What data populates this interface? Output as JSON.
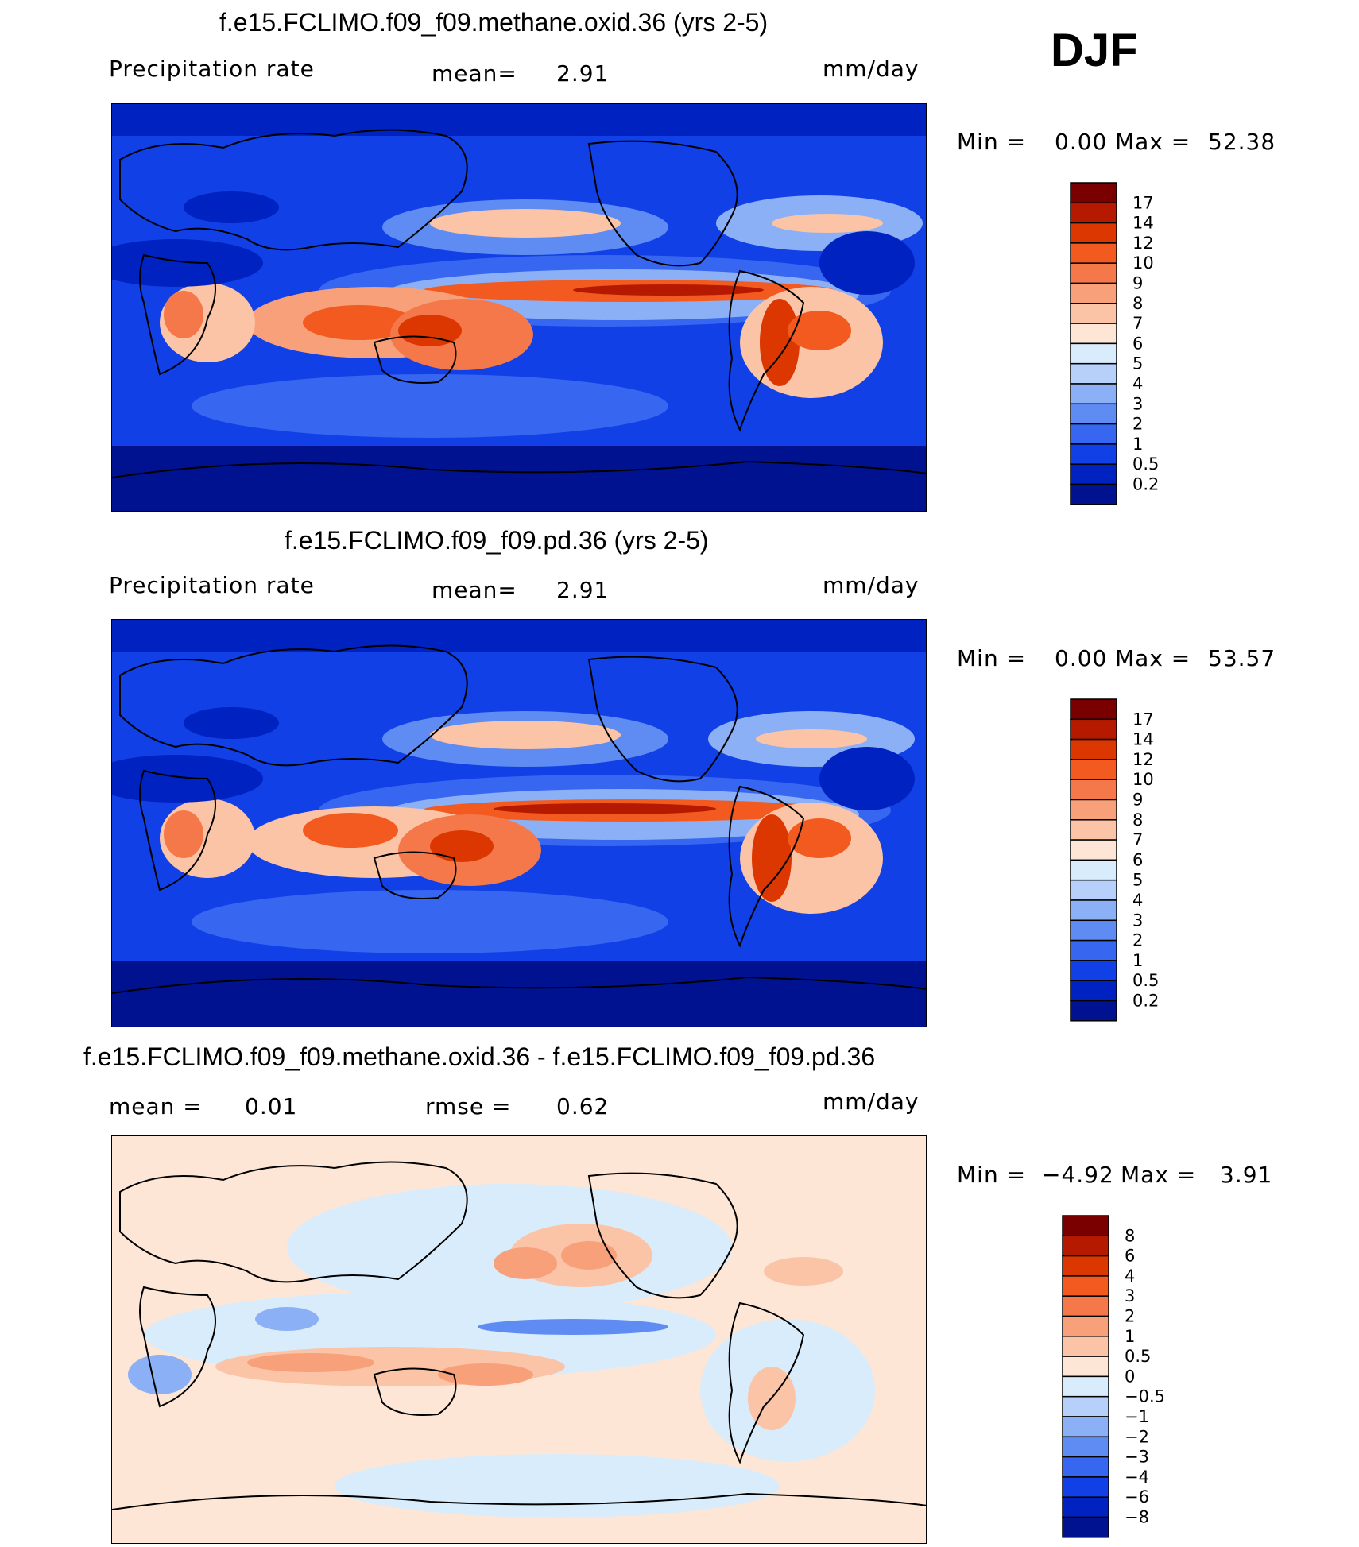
{
  "season": "DJF",
  "panels": [
    {
      "id": "methane",
      "title": "f.e15.FCLIMO.f09_f09.methane.oxid.36 (yrs 2-5)",
      "left_label": "Precipitation  rate",
      "center_label": "mean=",
      "center_value": "2.91",
      "right_label": "mm/day",
      "min_label": "Min  =",
      "min_value": "0.00",
      "max_label": "Max  =",
      "max_value": "52.38",
      "colorbar": {
        "labels": [
          "17",
          "14",
          "12",
          "10",
          "9",
          "8",
          "7",
          "6",
          "5",
          "4",
          "3",
          "2",
          "1",
          "0.5",
          "0.2"
        ],
        "colors": [
          "#7a0000",
          "#b51a00",
          "#dc3700",
          "#f25a20",
          "#f5784a",
          "#f7a07a",
          "#fbc4a6",
          "#fde6d6",
          "#d8ecfc",
          "#b6d0fa",
          "#8cb0f5",
          "#5e8cf2",
          "#3766f0",
          "#1140e6",
          "#0022c0",
          "#00128f"
        ]
      }
    },
    {
      "id": "pd",
      "title": "f.e15.FCLIMO.f09_f09.pd.36 (yrs 2-5)",
      "left_label": "Precipitation  rate",
      "center_label": "mean=",
      "center_value": "2.91",
      "right_label": "mm/day",
      "min_label": "Min  =",
      "min_value": "0.00",
      "max_label": "Max  =",
      "max_value": "53.57",
      "colorbar": {
        "labels": [
          "17",
          "14",
          "12",
          "10",
          "9",
          "8",
          "7",
          "6",
          "5",
          "4",
          "3",
          "2",
          "1",
          "0.5",
          "0.2"
        ],
        "colors": [
          "#7a0000",
          "#b51a00",
          "#dc3700",
          "#f25a20",
          "#f5784a",
          "#f7a07a",
          "#fbc4a6",
          "#fde6d6",
          "#d8ecfc",
          "#b6d0fa",
          "#8cb0f5",
          "#5e8cf2",
          "#3766f0",
          "#1140e6",
          "#0022c0",
          "#00128f"
        ]
      }
    },
    {
      "id": "diff",
      "title": "f.e15.FCLIMO.f09_f09.methane.oxid.36 - f.e15.FCLIMO.f09_f09.pd.36",
      "left_label": "mean  =",
      "left_value": "0.01",
      "center_label": "rmse  =",
      "center_value": "0.62",
      "right_label": "mm/day",
      "min_label": "Min  =",
      "min_value": "−4.92",
      "max_label": "Max  =",
      "max_value": "3.91",
      "colorbar": {
        "labels": [
          "8",
          "6",
          "4",
          "3",
          "2",
          "1",
          "0.5",
          "0",
          "−0.5",
          "−1",
          "−2",
          "−3",
          "−4",
          "−6",
          "−8"
        ],
        "colors": [
          "#7a0000",
          "#b51a00",
          "#dc3700",
          "#f25a20",
          "#f5784a",
          "#f7a07a",
          "#fbc4a6",
          "#fde6d6",
          "#d8ecfc",
          "#b6d0fa",
          "#8cb0f5",
          "#5e8cf2",
          "#3766f0",
          "#1140e6",
          "#0022c0",
          "#00128f"
        ]
      }
    }
  ]
}
